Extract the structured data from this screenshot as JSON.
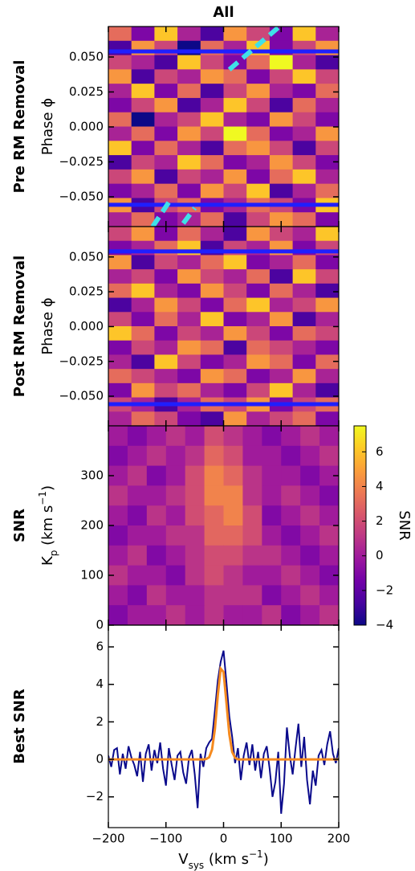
{
  "chart_data": [
    {
      "type": "heatmap",
      "title": "All",
      "row_label": "Pre RM Removal",
      "ylabel": "Phase ϕ",
      "colormap": "plasma",
      "zlim": [
        -3,
        5
      ],
      "xlim": [
        -200,
        200
      ],
      "xticks": [
        -200,
        -100,
        0,
        100,
        200
      ],
      "ylim": [
        -0.0713,
        0.0718
      ],
      "yticks": [
        {
          "value": 0.05,
          "label": "0.050"
        },
        {
          "value": 0.025,
          "label": "0.025"
        },
        {
          "value": 0,
          "label": "0.000"
        },
        {
          "value": -0.025,
          "label": "−0.025"
        },
        {
          "value": -0.05,
          "label": "−0.050"
        }
      ],
      "z": [
        [
          2,
          -1,
          4,
          0,
          -2,
          3,
          1,
          -1,
          4,
          0
        ],
        [
          -2,
          3,
          1,
          -3,
          2,
          0,
          4,
          -1,
          1,
          3
        ],
        [
          1,
          0,
          -2,
          4,
          1,
          -1,
          2,
          5,
          0,
          -2
        ],
        [
          3,
          -2,
          1,
          0,
          3,
          2,
          -1,
          1,
          4,
          1
        ],
        [
          0,
          4,
          -1,
          2,
          -2,
          1,
          3,
          0,
          -1,
          2
        ],
        [
          -1,
          1,
          3,
          -2,
          0,
          4,
          1,
          -2,
          2,
          0
        ],
        [
          2,
          -3,
          0,
          1,
          4,
          0,
          -1,
          3,
          1,
          -1
        ],
        [
          0,
          2,
          -1,
          3,
          1,
          5,
          2,
          -1,
          0,
          3
        ],
        [
          4,
          -1,
          2,
          0,
          -2,
          2,
          3,
          1,
          -2,
          1
        ],
        [
          -2,
          1,
          0,
          4,
          2,
          -1,
          0,
          3,
          1,
          -1
        ],
        [
          1,
          3,
          -2,
          1,
          0,
          3,
          -1,
          2,
          4,
          0
        ],
        [
          -1,
          0,
          2,
          -1,
          3,
          1,
          4,
          -2,
          0,
          2
        ],
        [
          3,
          -2,
          1,
          2,
          -1,
          0,
          2,
          1,
          -1,
          4
        ],
        [
          0,
          2,
          -1,
          0,
          2,
          -2,
          1,
          3,
          2,
          -1
        ]
      ],
      "hlines": {
        "values": [
          0.054,
          -0.0557
        ],
        "color": "#1f1fff"
      },
      "trails": {
        "color": "#3fe0e8",
        "lines": [
          {
            "x": [
              10,
              97
            ],
            "y": [
              0.041,
              0.0718
            ]
          },
          {
            "x": [
              -123,
              -92
            ],
            "y": [
              -0.0713,
              -0.052
            ]
          },
          {
            "x": [
              -70,
              -50
            ],
            "y": [
              -0.069,
              -0.058
            ]
          }
        ]
      }
    },
    {
      "type": "heatmap",
      "row_label": "Post RM Removal",
      "ylabel": "Phase ϕ",
      "colormap": "plasma",
      "zlim": [
        -3,
        5
      ],
      "xlim": [
        -200,
        200
      ],
      "xticks": [
        -200,
        -100,
        0,
        100,
        200
      ],
      "ylim": [
        -0.0713,
        0.0718
      ],
      "yticks": [
        {
          "value": 0.05,
          "label": "0.050"
        },
        {
          "value": 0.025,
          "label": "0.025"
        },
        {
          "value": 0,
          "label": "0.000"
        },
        {
          "value": -0.025,
          "label": "−0.025"
        },
        {
          "value": -0.05,
          "label": "−0.050"
        }
      ],
      "z": [
        [
          1,
          3,
          -1,
          2,
          0,
          -2,
          3,
          1,
          0,
          4
        ],
        [
          -1,
          0,
          2,
          4,
          -2,
          1,
          0,
          3,
          -1,
          1
        ],
        [
          3,
          -2,
          1,
          0,
          2,
          4,
          -1,
          0,
          2,
          -1
        ],
        [
          0,
          1,
          -1,
          3,
          1,
          0,
          2,
          -2,
          4,
          1
        ],
        [
          2,
          4,
          0,
          -1,
          3,
          1,
          -1,
          2,
          0,
          -2
        ],
        [
          -2,
          0,
          3,
          1,
          -1,
          2,
          4,
          0,
          1,
          3
        ],
        [
          1,
          -1,
          2,
          0,
          4,
          -1,
          0,
          3,
          -2,
          0
        ],
        [
          4,
          2,
          -1,
          1,
          0,
          3,
          1,
          -1,
          2,
          1
        ],
        [
          -1,
          1,
          0,
          3,
          2,
          -2,
          2,
          1,
          0,
          -1
        ],
        [
          0,
          -2,
          4,
          1,
          -1,
          0,
          3,
          2,
          -1,
          2
        ],
        [
          2,
          1,
          0,
          -1,
          3,
          2,
          -1,
          0,
          3,
          0
        ],
        [
          -1,
          3,
          1,
          2,
          0,
          -1,
          1,
          4,
          0,
          -2
        ],
        [
          1,
          0,
          -2,
          0,
          2,
          1,
          3,
          -1,
          1,
          2
        ],
        [
          0,
          2,
          1,
          -1,
          -2,
          3,
          0,
          1,
          2,
          -1
        ]
      ],
      "hlines": {
        "values": [
          0.054,
          -0.0557
        ],
        "color": "#1f1fff"
      }
    },
    {
      "type": "heatmap",
      "row_label": "SNR",
      "ylabel": {
        "text": "K",
        "sub": "p",
        "text2": " (km s",
        "sup": "−1",
        "text3": ")"
      },
      "colormap": "plasma",
      "zlim": [
        -4,
        7.5
      ],
      "xlim": [
        -200,
        200
      ],
      "xticks": [
        -200,
        -100,
        0,
        100,
        200
      ],
      "ylim": [
        0,
        400
      ],
      "yticks": [
        0,
        100,
        200,
        300
      ],
      "z": [
        [
          0,
          -1,
          0,
          1,
          0,
          2,
          1,
          0,
          -1,
          0,
          1,
          0
        ],
        [
          -1,
          0,
          1,
          0,
          1,
          3,
          2,
          0,
          0,
          -1,
          0,
          1
        ],
        [
          0,
          1,
          -1,
          0,
          2,
          4,
          3,
          1,
          0,
          0,
          -1,
          0
        ],
        [
          1,
          0,
          0,
          1,
          2,
          4,
          4,
          1,
          0,
          1,
          0,
          -1
        ],
        [
          0,
          -1,
          1,
          0,
          2,
          3,
          4,
          2,
          -1,
          0,
          1,
          0
        ],
        [
          -1,
          0,
          0,
          1,
          1,
          3,
          3,
          2,
          0,
          -1,
          0,
          1
        ],
        [
          0,
          1,
          -1,
          0,
          1,
          2,
          2,
          1,
          1,
          0,
          -1,
          0
        ],
        [
          1,
          0,
          0,
          -1,
          1,
          2,
          1,
          0,
          0,
          1,
          0,
          -1
        ],
        [
          0,
          -1,
          1,
          0,
          0,
          1,
          1,
          1,
          -1,
          0,
          1,
          0
        ],
        [
          -1,
          0,
          0,
          1,
          0,
          1,
          0,
          0,
          1,
          -1,
          0,
          1
        ]
      ],
      "colorbar": {
        "label": "SNR",
        "lim": [
          -4,
          7.5
        ],
        "ticks": [
          {
            "value": -4,
            "label": "−4"
          },
          {
            "value": -2,
            "label": "−2"
          },
          0,
          2,
          4,
          6
        ]
      }
    },
    {
      "type": "line",
      "row_label": "Best SNR",
      "xlabel": {
        "text": "V",
        "sub": "sys",
        "text2": " (km s",
        "sup": "−1",
        "text3": ")"
      },
      "xlim": [
        -200,
        200
      ],
      "xticks": [
        {
          "value": -200,
          "label": "−200"
        },
        {
          "value": -100,
          "label": "−100"
        },
        0,
        100,
        200
      ],
      "ylim": [
        -3.64,
        7.16
      ],
      "yticks": [
        {
          "value": -2,
          "label": "−2"
        },
        0,
        2,
        4,
        6
      ],
      "x": [
        -200,
        -195,
        -190,
        -185,
        -180,
        -175,
        -170,
        -165,
        -160,
        -155,
        -150,
        -145,
        -140,
        -135,
        -130,
        -125,
        -120,
        -115,
        -110,
        -105,
        -100,
        -95,
        -90,
        -85,
        -80,
        -75,
        -70,
        -65,
        -60,
        -55,
        -50,
        -45,
        -40,
        -35,
        -30,
        -25,
        -20,
        -15,
        -10,
        -5,
        0,
        5,
        10,
        15,
        20,
        25,
        30,
        35,
        40,
        45,
        50,
        55,
        60,
        65,
        70,
        75,
        80,
        85,
        90,
        95,
        100,
        105,
        110,
        115,
        120,
        125,
        130,
        135,
        140,
        145,
        150,
        155,
        160,
        165,
        170,
        175,
        180,
        185,
        190,
        195,
        200
      ],
      "series": [
        {
          "color": "#0a0a8c",
          "values": [
            0.2,
            -0.4,
            0.5,
            0.6,
            -0.8,
            0.3,
            -0.5,
            0.7,
            0.1,
            -0.3,
            -0.9,
            0.4,
            -1.2,
            0.3,
            0.8,
            -0.6,
            0.5,
            -0.2,
            0.9,
            -0.5,
            -1.4,
            0.6,
            -0.3,
            -1.1,
            0.2,
            0.4,
            -0.7,
            -1.3,
            0.1,
            0.5,
            -0.8,
            -2.6,
            0.3,
            -0.4,
            0.6,
            0.9,
            1.1,
            2.6,
            4.2,
            5.2,
            5.8,
            4.1,
            2.3,
            1.2,
            -0.2,
            0.6,
            -1.1,
            0.2,
            0.9,
            -0.3,
            0.8,
            -0.6,
            0.4,
            -1.0,
            0.3,
            0.7,
            -0.5,
            -2.0,
            -1.2,
            0.4,
            -2.9,
            -1.3,
            1.7,
            0.2,
            -0.8,
            0.6,
            1.9,
            -0.4,
            1.2,
            -1.1,
            -2.4,
            -0.6,
            -1.4,
            0.2,
            0.5,
            -0.3,
            0.8,
            1.5,
            0.3,
            -0.2,
            0.6
          ]
        },
        {
          "color": "#f58a1f",
          "values": [
            0,
            0,
            0,
            0,
            0,
            0,
            0,
            0,
            0,
            0,
            0,
            0,
            0,
            0,
            0,
            0,
            0,
            0,
            0,
            0,
            0,
            0,
            0,
            0,
            0,
            0,
            0,
            0,
            0,
            0,
            0,
            0,
            0,
            0,
            0.02,
            0.11,
            0.52,
            1.62,
            3.41,
            4.84,
            4.66,
            3.03,
            1.34,
            0.4,
            0.08,
            0,
            0,
            0,
            0,
            0,
            0,
            0,
            0,
            0,
            0,
            0,
            0,
            0,
            0,
            0,
            0,
            0,
            0,
            0,
            0,
            0,
            0,
            0,
            0,
            0,
            0,
            0,
            0,
            0,
            0,
            0,
            0,
            0,
            0,
            0,
            0
          ]
        }
      ]
    }
  ]
}
